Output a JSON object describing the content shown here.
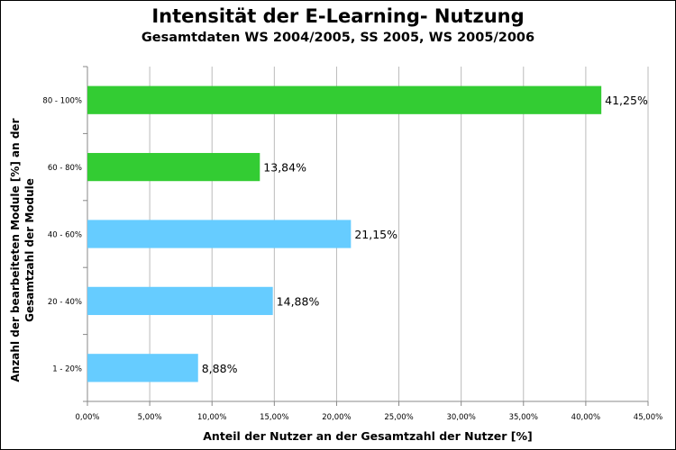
{
  "chart_data": {
    "type": "bar",
    "orientation": "horizontal",
    "title": "Intensität der E-Learning- Nutzung",
    "subtitle": "Gesamtdaten WS 2004/2005, SS 2005, WS 2005/2006",
    "xlabel": "Anteil der Nutzer an der Gesamtzahl der Nutzer [%]",
    "ylabel_line1": "Anzahl der bearbeiteten Module [%] an der",
    "ylabel_line2": "Gesamtzahl der Module",
    "categories": [
      "80 - 100%",
      "60 - 80%",
      "40 - 60%",
      "20 - 40%",
      "1 - 20%"
    ],
    "values": [
      41.25,
      13.84,
      21.15,
      14.88,
      8.88
    ],
    "value_labels": [
      "41,25%",
      "13,84%",
      "21,15%",
      "14,88%",
      "8,88%"
    ],
    "bar_colors": [
      "#33cc33",
      "#33cc33",
      "#66ccff",
      "#66ccff",
      "#66ccff"
    ],
    "xlim": [
      0,
      45
    ],
    "xticks": [
      0,
      5,
      10,
      15,
      20,
      25,
      30,
      35,
      40,
      45
    ],
    "xtick_labels": [
      "0,00%",
      "5,00%",
      "10,00%",
      "15,00%",
      "20,00%",
      "25,00%",
      "30,00%",
      "35,00%",
      "40,00%",
      "45,00%"
    ],
    "grid": true,
    "grid_color": "#bbbbbb"
  }
}
